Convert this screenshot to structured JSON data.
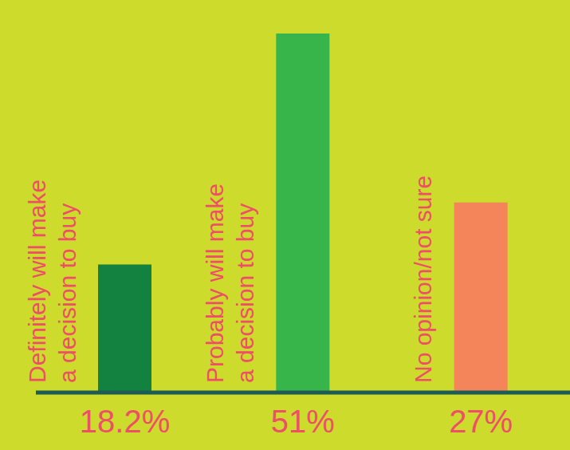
{
  "chart_data": {
    "type": "bar",
    "categories": [
      "Definitely will make a decision to buy",
      "Probably will make a decision to buy",
      "No opinion/not sure"
    ],
    "values": [
      18.2,
      51,
      27
    ],
    "value_labels": [
      "18.2%",
      "51%",
      "27%"
    ],
    "colors": [
      "#13813f",
      "#38b54a",
      "#f4855a"
    ],
    "ylim": [
      0,
      51
    ],
    "data_labels": true,
    "tick_labels": "x"
  }
}
